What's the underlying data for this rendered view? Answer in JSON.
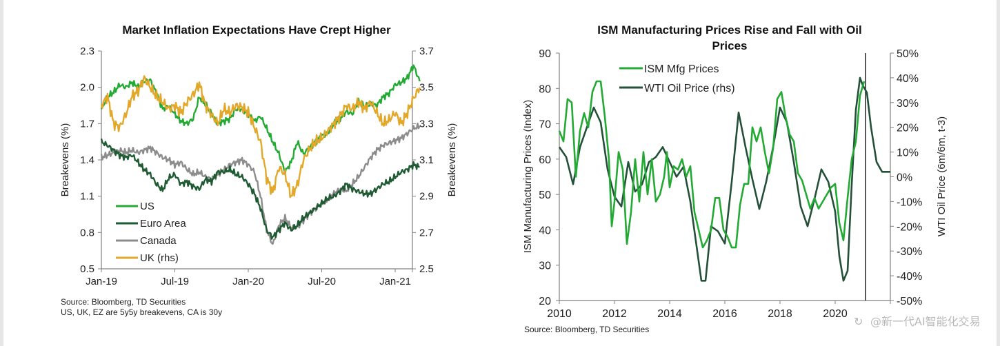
{
  "chart_data": [
    {
      "type": "line",
      "title": "Market Inflation Expectations Have Crept Higher",
      "xlabel": "",
      "ylabel": "Breakevens (%)",
      "y2label": "Breakevens (%)",
      "ylim": [
        0.5,
        2.3
      ],
      "y2lim": [
        2.5,
        3.7
      ],
      "yticks": [
        "2.3",
        "2.0",
        "1.7",
        "1.4",
        "1.1",
        "0.8",
        "0.5"
      ],
      "ytick_values": [
        2.3,
        2.0,
        1.7,
        1.4,
        1.1,
        0.8,
        0.5
      ],
      "y2ticks": [
        "3.7",
        "3.5",
        "3.3",
        "3.1",
        "2.9",
        "2.7",
        "2.5"
      ],
      "y2tick_values": [
        3.7,
        3.5,
        3.3,
        3.1,
        2.9,
        2.7,
        2.5
      ],
      "xticks": [
        "Jan-19",
        "Jul-19",
        "Jan-20",
        "Jul-20",
        "Jan-21"
      ],
      "x_months_range": [
        0,
        26
      ],
      "xtick_months": [
        0,
        6,
        12,
        18,
        24
      ],
      "legend_position": "bottom-left",
      "grid": false,
      "x": [
        0,
        0.5,
        1,
        1.5,
        2,
        2.5,
        3,
        3.5,
        4,
        4.5,
        5,
        5.5,
        6,
        6.5,
        7,
        7.5,
        8,
        8.5,
        9,
        9.5,
        10,
        10.5,
        11,
        11.5,
        12,
        12.5,
        13,
        13.5,
        14,
        14.5,
        15,
        15.5,
        16,
        16.5,
        17,
        17.5,
        18,
        18.5,
        19,
        19.5,
        20,
        20.5,
        21,
        21.5,
        22,
        22.5,
        23,
        23.5,
        24,
        24.5,
        25,
        25.5,
        26
      ],
      "series": [
        {
          "name": "US",
          "axis": "left",
          "color": "#22aa33",
          "values": [
            1.82,
            1.92,
            1.96,
            2.02,
            2.0,
            2.04,
            2.0,
            2.05,
            2.06,
            1.95,
            1.82,
            1.85,
            1.78,
            1.72,
            1.7,
            1.74,
            1.92,
            1.86,
            1.78,
            1.7,
            1.72,
            1.74,
            1.82,
            1.82,
            1.78,
            1.72,
            1.76,
            1.66,
            1.55,
            1.45,
            1.3,
            1.38,
            1.55,
            1.45,
            1.5,
            1.55,
            1.6,
            1.62,
            1.7,
            1.74,
            1.8,
            1.78,
            1.88,
            1.84,
            1.86,
            1.85,
            1.92,
            1.95,
            2.02,
            2.04,
            2.08,
            2.18,
            2.05
          ]
        },
        {
          "name": "Euro Area",
          "axis": "left",
          "color": "#1e5a32",
          "values": [
            1.55,
            1.52,
            1.48,
            1.44,
            1.42,
            1.44,
            1.38,
            1.32,
            1.28,
            1.2,
            1.15,
            1.25,
            1.28,
            1.2,
            1.22,
            1.18,
            1.16,
            1.24,
            1.22,
            1.3,
            1.3,
            1.32,
            1.28,
            1.26,
            1.2,
            1.12,
            1.0,
            0.82,
            0.76,
            0.82,
            0.88,
            0.82,
            0.86,
            0.92,
            0.96,
            1.0,
            1.04,
            1.08,
            1.1,
            1.14,
            1.2,
            1.16,
            1.14,
            1.12,
            1.12,
            1.16,
            1.2,
            1.22,
            1.26,
            1.3,
            1.32,
            1.36,
            1.34
          ]
        },
        {
          "name": "Canada",
          "axis": "left",
          "color": "#8c8c8c",
          "values": [
            1.42,
            1.44,
            1.46,
            1.48,
            1.46,
            1.48,
            1.46,
            1.48,
            1.5,
            1.46,
            1.42,
            1.4,
            1.36,
            1.38,
            1.32,
            1.28,
            1.3,
            1.26,
            1.24,
            1.28,
            1.32,
            1.36,
            1.38,
            1.4,
            1.36,
            1.3,
            1.1,
            0.82,
            0.7,
            0.86,
            0.92,
            0.84,
            0.84,
            0.9,
            0.96,
            1.0,
            1.04,
            1.08,
            1.12,
            1.16,
            1.14,
            1.2,
            1.26,
            1.34,
            1.42,
            1.48,
            1.52,
            1.54,
            1.56,
            1.58,
            1.62,
            1.66,
            1.68
          ]
        },
        {
          "name": "UK (rhs)",
          "axis": "right",
          "color": "#e3a82a",
          "values": [
            3.4,
            3.45,
            3.3,
            3.28,
            3.35,
            3.45,
            3.48,
            3.55,
            3.5,
            3.45,
            3.42,
            3.38,
            3.4,
            3.36,
            3.42,
            3.46,
            3.52,
            3.4,
            3.35,
            3.3,
            3.38,
            3.36,
            3.4,
            3.39,
            3.36,
            3.28,
            3.2,
            3.0,
            2.92,
            3.06,
            3.02,
            2.9,
            2.96,
            3.1,
            3.16,
            3.2,
            3.22,
            3.26,
            3.3,
            3.34,
            3.4,
            3.38,
            3.42,
            3.38,
            3.42,
            3.36,
            3.3,
            3.32,
            3.36,
            3.3,
            3.36,
            3.44,
            3.5
          ]
        }
      ],
      "notes": [
        "Source: Bloomberg, TD Securities",
        "US, UK, EZ are 5y5y breakevens, CA is 30y"
      ]
    },
    {
      "type": "line",
      "title": "ISM Manufacturing Prices Rise and Fall with Oil Prices",
      "title_lines": [
        "ISM Manufacturing Prices Rise and Fall with Oil",
        "Prices"
      ],
      "xlabel": "",
      "ylabel": "ISM Manufacturing Prices (Index)",
      "y2label": "WTI Oil Price (6m/6m, t-3)",
      "ylim": [
        20,
        90
      ],
      "y2lim": [
        -50,
        50
      ],
      "yticks": [
        "90",
        "80",
        "70",
        "60",
        "50",
        "40",
        "30",
        "20"
      ],
      "ytick_values": [
        90,
        80,
        70,
        60,
        50,
        40,
        30,
        20
      ],
      "y2ticks": [
        "50%",
        "40%",
        "30%",
        "20%",
        "10%",
        "0%",
        "-10%",
        "-20%",
        "-30%",
        "-40%",
        "-50%"
      ],
      "y2tick_values": [
        50,
        40,
        30,
        20,
        10,
        0,
        -10,
        -20,
        -30,
        -40,
        -50
      ],
      "xticks": [
        "2010",
        "2012",
        "2014",
        "2016",
        "2018",
        "2020"
      ],
      "xtick_values": [
        2010,
        2012,
        2014,
        2016,
        2018,
        2020
      ],
      "xlim": [
        2010,
        2022
      ],
      "vertical_marker_x": 2021.1,
      "legend_position": "top-left",
      "grid": false,
      "series": [
        {
          "name": "ISM Mfg Prices",
          "axis": "left",
          "color": "#22aa33",
          "x": [
            2010,
            2010.15,
            2010.3,
            2010.45,
            2010.6,
            2010.75,
            2010.9,
            2011.05,
            2011.2,
            2011.35,
            2011.5,
            2011.65,
            2011.8,
            2011.9,
            2012,
            2012.15,
            2012.3,
            2012.45,
            2012.6,
            2012.75,
            2012.9,
            2013.05,
            2013.2,
            2013.35,
            2013.5,
            2013.65,
            2013.8,
            2013.9,
            2014,
            2014.15,
            2014.3,
            2014.45,
            2014.6,
            2014.75,
            2014.9,
            2015.05,
            2015.2,
            2015.35,
            2015.5,
            2015.65,
            2015.8,
            2015.95,
            2016.1,
            2016.25,
            2016.4,
            2016.55,
            2016.7,
            2016.85,
            2017,
            2017.15,
            2017.3,
            2017.45,
            2017.6,
            2017.75,
            2017.9,
            2018.05,
            2018.2,
            2018.35,
            2018.5,
            2018.65,
            2018.8,
            2018.95,
            2019.1,
            2019.25,
            2019.4,
            2019.55,
            2019.7,
            2019.85,
            2020,
            2020.15,
            2020.3,
            2020.45,
            2020.6,
            2020.75,
            2020.9,
            2021.05
          ],
          "values": [
            68,
            65,
            77,
            76,
            55,
            68,
            73,
            69,
            79,
            82,
            82,
            72,
            60,
            41,
            48,
            62,
            57,
            36,
            45,
            60,
            48,
            62,
            50,
            60,
            48,
            50,
            55,
            62,
            52,
            58,
            57,
            60,
            55,
            58,
            45,
            40,
            35,
            37,
            40,
            49,
            49,
            40,
            38,
            35,
            35,
            47,
            53,
            53,
            69,
            65,
            69,
            62,
            56,
            63,
            77,
            79,
            72,
            67,
            65,
            56,
            54,
            50,
            46,
            49,
            46,
            48,
            50,
            52,
            53,
            42,
            37,
            49,
            60,
            65,
            78,
            82
          ]
        },
        {
          "name": "WTI Oil Price (rhs)",
          "axis": "right",
          "color": "#24503a",
          "x": [
            2010,
            2010.25,
            2010.5,
            2010.75,
            2011,
            2011.25,
            2011.5,
            2011.75,
            2012,
            2012.25,
            2012.5,
            2012.75,
            2013,
            2013.25,
            2013.5,
            2013.75,
            2014,
            2014.25,
            2014.5,
            2014.75,
            2015,
            2015.15,
            2015.3,
            2015.5,
            2015.75,
            2016,
            2016.25,
            2016.5,
            2016.75,
            2017,
            2017.25,
            2017.5,
            2017.75,
            2018,
            2018.25,
            2018.5,
            2018.75,
            2019,
            2019.25,
            2019.5,
            2019.75,
            2020,
            2020.15,
            2020.3,
            2020.45,
            2020.6,
            2020.75,
            2020.9,
            2021,
            2021.15,
            2021.3,
            2021.5,
            2021.7,
            2021.85,
            2022
          ],
          "values": [
            12,
            8,
            -3,
            12,
            20,
            28,
            22,
            3,
            -8,
            -12,
            6,
            -6,
            -3,
            6,
            8,
            12,
            6,
            0,
            4,
            -10,
            -30,
            -42,
            -42,
            -20,
            -22,
            -27,
            -2,
            26,
            12,
            -1,
            -13,
            -2,
            12,
            28,
            22,
            6,
            -12,
            -20,
            -9,
            3,
            -2,
            -14,
            -32,
            -42,
            -38,
            -3,
            27,
            40,
            37,
            34,
            20,
            6,
            2,
            2,
            2
          ]
        }
      ],
      "notes": [
        "Source: Bloomberg, TD Securities"
      ]
    }
  ],
  "watermark": "@新一代AI智能化交易"
}
